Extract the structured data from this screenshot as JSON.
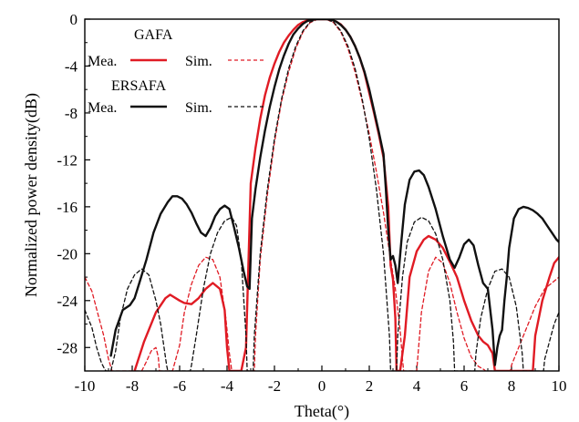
{
  "chart_data": {
    "type": "line",
    "xlabel": "Theta(°)",
    "ylabel": "Normalized power density(dB)",
    "xlim": [
      -10,
      10
    ],
    "ylim": [
      -30,
      0
    ],
    "xticks": [
      -10,
      -8,
      -6,
      -4,
      -2,
      0,
      2,
      4,
      6,
      8,
      10
    ],
    "yticks": [
      0,
      -4,
      -8,
      -12,
      -16,
      -20,
      -24,
      -28
    ],
    "grid": false,
    "legend": {
      "placement": "top-left",
      "groups": [
        {
          "title": "GAFA",
          "mea_label": "Mea.",
          "sim_label": "Sim."
        },
        {
          "title": "ERSAFA",
          "mea_label": "Mea.",
          "sim_label": "Sim."
        }
      ]
    },
    "series": [
      {
        "group": "GAFA",
        "kind": "Mea.",
        "color": "#e01b24",
        "dash": false,
        "width": 2.4,
        "x": [
          -7.9,
          -7.5,
          -7.0,
          -6.6,
          -6.4,
          -6.0,
          -5.8,
          -5.5,
          -5.2,
          -4.9,
          -4.6,
          -4.3,
          -4.1,
          -4.0,
          -3.9,
          -3.85,
          -3.75,
          -3.6,
          -3.4,
          -3.2,
          -3.0,
          -2.8,
          -2.6,
          -2.4,
          -2.2,
          -2.0,
          -1.8,
          -1.6,
          -1.4,
          -1.2,
          -1.0,
          -0.8,
          -0.6,
          -0.4,
          -0.2,
          0.0,
          0.2,
          0.4,
          0.6,
          0.8,
          1.0,
          1.2,
          1.4,
          1.6,
          1.8,
          2.0,
          2.2,
          2.4,
          2.6,
          2.8,
          2.9,
          3.0,
          3.1,
          3.15,
          3.3,
          3.5,
          3.7,
          4.0,
          4.3,
          4.5,
          4.8,
          5.1,
          5.4,
          5.7,
          6.0,
          6.3,
          6.6,
          6.8,
          7.0,
          7.2,
          7.3,
          7.35,
          8.9,
          9.0,
          9.3,
          9.6,
          9.8,
          10.0
        ],
        "y": [
          -30.0,
          -27.5,
          -25.0,
          -23.8,
          -23.5,
          -24.0,
          -24.2,
          -24.3,
          -23.8,
          -23.0,
          -22.5,
          -23.0,
          -24.8,
          -28.0,
          -30.0,
          -30.0,
          -30.0,
          -30.0,
          -30.0,
          -28.0,
          -14.0,
          -11.0,
          -8.5,
          -6.5,
          -5.0,
          -3.8,
          -2.8,
          -2.0,
          -1.4,
          -0.9,
          -0.5,
          -0.25,
          -0.1,
          -0.03,
          0.0,
          0.0,
          0.0,
          -0.05,
          -0.2,
          -0.45,
          -0.9,
          -1.5,
          -2.3,
          -3.3,
          -4.6,
          -6.3,
          -8.0,
          -9.8,
          -11.8,
          -16.0,
          -21.0,
          -22.2,
          -25.5,
          -30.0,
          -30.0,
          -27.0,
          -22.0,
          -19.8,
          -18.8,
          -18.5,
          -18.8,
          -19.5,
          -20.7,
          -22.0,
          -24.0,
          -25.7,
          -27.0,
          -27.5,
          -27.8,
          -28.5,
          -30.0,
          -30.0,
          -30.0,
          -27.0,
          -24.0,
          -22.0,
          -20.8,
          -20.3
        ]
      },
      {
        "group": "GAFA",
        "kind": "Sim.",
        "color": "#e01b24",
        "dash": true,
        "width": 1.3,
        "x": [
          -10.0,
          -9.7,
          -9.4,
          -9.2,
          -9.0,
          -8.85,
          -7.6,
          -7.4,
          -7.2,
          -7.0,
          -6.9,
          -6.85,
          -6.7,
          -6.3,
          -6.0,
          -5.8,
          -5.5,
          -5.2,
          -4.9,
          -4.6,
          -4.3,
          -4.05,
          -3.9,
          -3.8,
          -2.85,
          -2.8,
          -2.6,
          -2.3,
          -2.0,
          -1.7,
          -1.4,
          -1.1,
          -0.8,
          -0.5,
          -0.2,
          0.0,
          0.2,
          0.5,
          0.8,
          1.1,
          1.4,
          1.7,
          2.0,
          2.3,
          2.6,
          2.9,
          3.1,
          3.3,
          3.4,
          3.45,
          4.0,
          4.2,
          4.5,
          4.8,
          5.1,
          5.4,
          5.7,
          6.0,
          6.3,
          6.6,
          6.85,
          6.9,
          7.95,
          8.0,
          8.3,
          8.6,
          9.0,
          9.4,
          9.7,
          10.0
        ],
        "y": [
          -22.0,
          -23.2,
          -25.5,
          -27.0,
          -29.0,
          -30.0,
          -30.0,
          -29.2,
          -28.3,
          -28.0,
          -28.8,
          -30.0,
          -30.0,
          -30.0,
          -27.8,
          -25.0,
          -22.6,
          -21.0,
          -20.3,
          -20.5,
          -22.0,
          -25.5,
          -28.5,
          -30.0,
          -30.0,
          -27.0,
          -20.5,
          -15.0,
          -10.5,
          -7.0,
          -4.5,
          -2.5,
          -1.1,
          -0.3,
          -0.02,
          0.0,
          -0.02,
          -0.3,
          -1.1,
          -2.5,
          -4.5,
          -7.0,
          -9.8,
          -13.0,
          -16.5,
          -20.5,
          -23.0,
          -26.5,
          -29.0,
          -30.0,
          -30.0,
          -25.0,
          -21.5,
          -20.3,
          -20.8,
          -22.5,
          -25.0,
          -27.2,
          -28.8,
          -29.6,
          -29.9,
          -30.0,
          -30.0,
          -29.5,
          -28.0,
          -26.5,
          -24.5,
          -23.0,
          -22.5,
          -22.0
        ]
      },
      {
        "group": "ERSAFA",
        "kind": "Mea.",
        "color": "#111111",
        "dash": false,
        "width": 2.4,
        "x": [
          -8.9,
          -8.7,
          -8.4,
          -8.1,
          -7.9,
          -7.7,
          -7.4,
          -7.1,
          -6.8,
          -6.5,
          -6.3,
          -6.1,
          -5.9,
          -5.7,
          -5.5,
          -5.3,
          -5.1,
          -4.9,
          -4.7,
          -4.5,
          -4.3,
          -4.1,
          -3.9,
          -3.7,
          -3.5,
          -3.3,
          -3.15,
          -3.05,
          -2.95,
          -2.8,
          -2.6,
          -2.4,
          -2.2,
          -2.0,
          -1.8,
          -1.6,
          -1.4,
          -1.2,
          -1.0,
          -0.8,
          -0.6,
          -0.4,
          -0.2,
          0.0,
          0.2,
          0.4,
          0.6,
          0.8,
          1.0,
          1.2,
          1.4,
          1.6,
          1.8,
          2.0,
          2.2,
          2.4,
          2.6,
          2.7,
          2.8,
          2.9,
          3.0,
          3.1,
          3.2,
          3.35,
          3.5,
          3.7,
          3.9,
          4.1,
          4.3,
          4.5,
          4.8,
          5.1,
          5.4,
          5.6,
          5.8,
          6.0,
          6.2,
          6.4,
          6.6,
          6.8,
          7.0,
          7.2,
          7.3,
          7.4,
          7.5,
          7.6,
          7.7,
          7.8,
          7.9,
          8.1,
          8.3,
          8.5,
          8.7,
          8.9,
          9.1,
          9.3,
          9.5,
          9.7,
          9.9,
          10.0
        ],
        "y": [
          -28.7,
          -26.5,
          -24.8,
          -24.4,
          -23.8,
          -22.5,
          -20.5,
          -18.2,
          -16.6,
          -15.6,
          -15.1,
          -15.1,
          -15.3,
          -15.8,
          -16.5,
          -17.4,
          -18.2,
          -18.5,
          -17.8,
          -16.8,
          -16.2,
          -15.9,
          -16.2,
          -17.8,
          -19.5,
          -21.5,
          -22.8,
          -23.0,
          -17.0,
          -14.5,
          -11.8,
          -9.5,
          -7.5,
          -5.8,
          -4.3,
          -3.1,
          -2.1,
          -1.3,
          -0.8,
          -0.4,
          -0.15,
          -0.05,
          0.0,
          0.0,
          0.0,
          -0.05,
          -0.2,
          -0.5,
          -0.9,
          -1.5,
          -2.3,
          -3.3,
          -4.5,
          -6.0,
          -7.8,
          -9.6,
          -11.5,
          -14.5,
          -18.0,
          -20.5,
          -20.2,
          -21.0,
          -22.5,
          -19.0,
          -15.8,
          -13.7,
          -13.0,
          -12.9,
          -13.3,
          -14.3,
          -16.2,
          -18.5,
          -20.5,
          -21.2,
          -20.3,
          -19.2,
          -18.8,
          -19.3,
          -21.0,
          -22.5,
          -23.0,
          -26.5,
          -29.5,
          -28.0,
          -27.0,
          -26.5,
          -24.0,
          -22.0,
          -19.5,
          -17.0,
          -16.2,
          -16.0,
          -16.1,
          -16.3,
          -16.6,
          -17.0,
          -17.6,
          -18.2,
          -18.8,
          -19.0
        ]
      },
      {
        "group": "ERSAFA",
        "kind": "Sim.",
        "color": "#111111",
        "dash": true,
        "width": 1.3,
        "x": [
          -10.0,
          -9.7,
          -9.5,
          -9.3,
          -9.15,
          -9.1,
          -8.9,
          -8.7,
          -8.5,
          -8.2,
          -7.9,
          -7.6,
          -7.3,
          -7.0,
          -6.8,
          -6.55,
          -6.5,
          -5.55,
          -5.5,
          -5.3,
          -5.0,
          -4.7,
          -4.4,
          -4.1,
          -3.8,
          -3.6,
          -3.4,
          -3.2,
          -3.15,
          -2.9,
          -2.85,
          -2.6,
          -2.3,
          -2.0,
          -1.7,
          -1.4,
          -1.1,
          -0.8,
          -0.5,
          -0.2,
          0.0,
          0.2,
          0.5,
          0.8,
          1.1,
          1.4,
          1.7,
          2.0,
          2.3,
          2.6,
          2.85,
          2.9,
          3.15,
          3.2,
          3.4,
          3.6,
          3.9,
          4.2,
          4.5,
          4.8,
          5.1,
          5.4,
          5.55,
          5.6,
          6.45,
          6.5,
          6.7,
          7.0,
          7.3,
          7.6,
          7.9,
          8.2,
          8.45,
          8.5,
          9.35,
          9.4,
          9.6,
          9.8,
          10.0
        ],
        "y": [
          -24.8,
          -26.3,
          -28.0,
          -29.3,
          -29.9,
          -30.0,
          -30.0,
          -28.3,
          -25.5,
          -23.0,
          -21.8,
          -21.3,
          -21.8,
          -24.0,
          -26.0,
          -29.5,
          -30.0,
          -30.0,
          -29.5,
          -27.0,
          -23.0,
          -20.0,
          -18.2,
          -17.2,
          -16.9,
          -17.6,
          -20.5,
          -27.0,
          -30.0,
          -30.0,
          -27.0,
          -20.0,
          -14.5,
          -10.2,
          -6.8,
          -4.2,
          -2.3,
          -1.0,
          -0.25,
          -0.01,
          0.0,
          -0.01,
          -0.25,
          -1.0,
          -2.3,
          -4.2,
          -6.8,
          -10.2,
          -14.5,
          -20.0,
          -27.0,
          -30.0,
          -30.0,
          -27.0,
          -22.0,
          -19.0,
          -17.3,
          -16.9,
          -17.2,
          -18.3,
          -20.5,
          -24.0,
          -27.5,
          -30.0,
          -30.0,
          -28.5,
          -25.5,
          -23.0,
          -21.5,
          -21.3,
          -22.0,
          -24.5,
          -28.5,
          -30.0,
          -30.0,
          -29.0,
          -27.5,
          -26.0,
          -25.0
        ]
      }
    ]
  }
}
